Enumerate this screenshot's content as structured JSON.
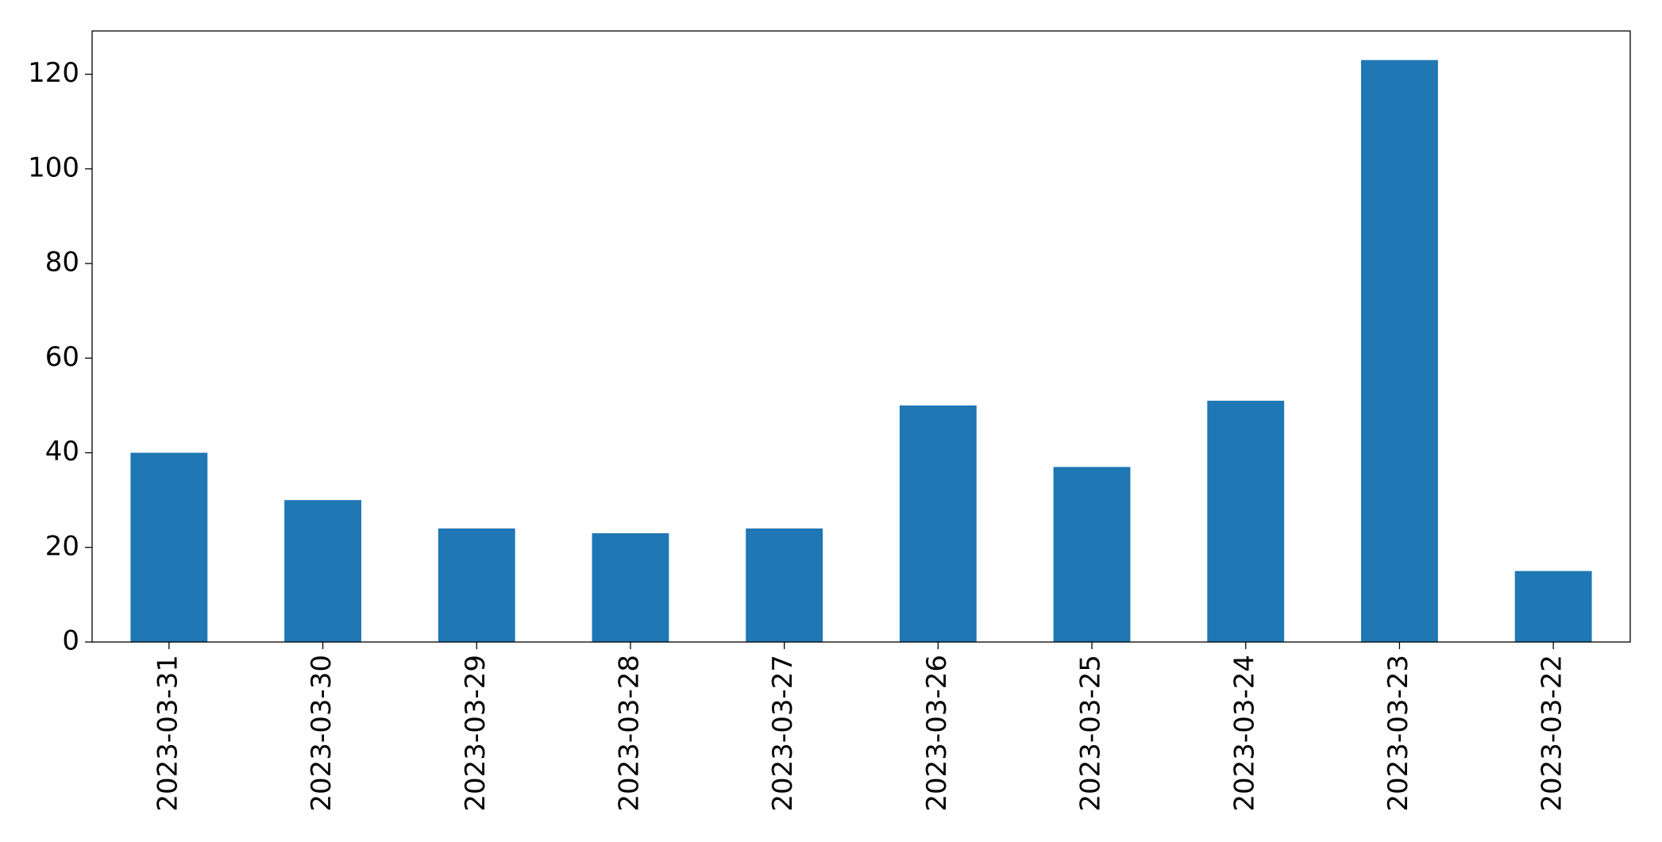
{
  "chart_data": {
    "type": "bar",
    "categories": [
      "2023-03-31",
      "2023-03-30",
      "2023-03-29",
      "2023-03-28",
      "2023-03-27",
      "2023-03-26",
      "2023-03-25",
      "2023-03-24",
      "2023-03-23",
      "2023-03-22"
    ],
    "values": [
      40,
      30,
      24,
      23,
      24,
      50,
      37,
      51,
      123,
      15
    ],
    "color": "#1f77b4",
    "ylim": [
      0,
      129.15
    ],
    "yticks": [
      0,
      20,
      40,
      60,
      80,
      100,
      120
    ],
    "grid": false
  }
}
